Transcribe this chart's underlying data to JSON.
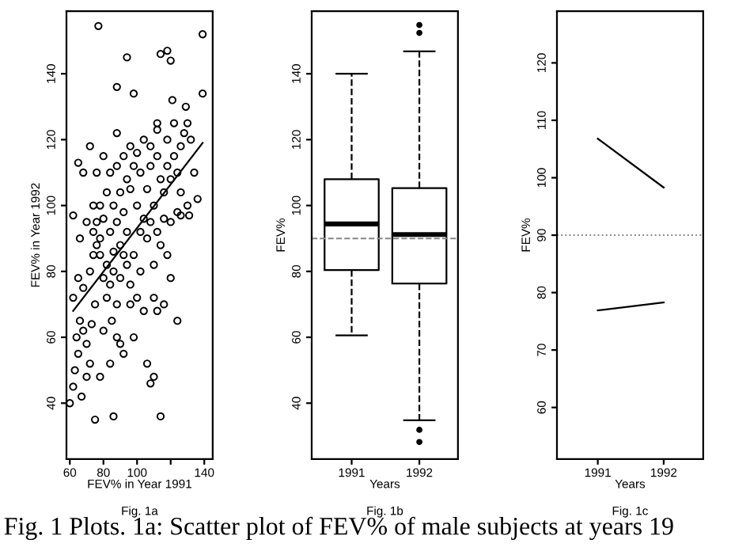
{
  "chart_data": [
    {
      "type": "scatter",
      "xlabel": "FEV% in Year 1991",
      "ylabel": "FEV% in Year 1992",
      "annotations": [
        "Fig. 1a",
        "Fig. 1 Plots. 1a: Scatter plot of FEV% of male subjects at years 19"
      ],
      "xlim": [
        58,
        145
      ],
      "ylim": [
        23,
        159
      ],
      "xticks": [
        60,
        80,
        100,
        {
          "value": 120,
          "label": null
        },
        140
      ],
      "yticks": [
        40,
        60,
        80,
        100,
        120,
        140
      ],
      "marker": "circle",
      "grid": false,
      "series": [
        {
          "color": "#000000",
          "x": [
            77,
            139,
            94,
            114,
            118,
            120,
            88,
            98,
            139,
            121,
            129,
            112,
            88,
            62,
            60,
            75,
            86,
            114,
            108,
            124,
            131,
            126,
            62,
            63,
            65,
            67,
            70,
            72,
            64,
            66,
            68,
            70,
            73,
            75,
            62,
            65,
            68,
            72,
            74,
            76,
            78,
            66,
            70,
            68,
            65,
            72,
            74,
            76,
            80,
            82,
            85,
            88,
            90,
            92,
            80,
            84,
            78,
            96,
            100,
            104,
            98,
            106,
            110,
            112,
            116,
            120,
            118,
            114,
            110,
            106,
            102,
            100,
            96,
            92,
            88,
            84,
            80,
            86,
            90,
            94,
            98,
            102,
            106,
            110,
            114,
            118,
            122,
            126,
            128,
            130,
            132,
            134,
            136,
            130,
            124,
            120,
            116,
            112,
            108,
            104,
            100,
            96,
            92,
            88,
            84,
            82,
            78,
            82,
            86,
            90,
            94,
            98,
            102,
            104,
            108,
            112,
            116,
            120,
            124,
            126,
            118,
            122,
            112,
            108,
            76,
            80,
            78,
            74,
            86,
            90,
            94,
            88,
            84,
            96,
            92,
            110
          ],
          "values": [
            154.5,
            152,
            145,
            146,
            147,
            144,
            136,
            134,
            134,
            132,
            130,
            123,
            122,
            97,
            40,
            35,
            36,
            36,
            46,
            65,
            97,
            97,
            45,
            50,
            55,
            42,
            48,
            52,
            60,
            65,
            62,
            58,
            64,
            70,
            72,
            78,
            75,
            80,
            85,
            88,
            90,
            90,
            95,
            110,
            113,
            118,
            100,
            95,
            78,
            72,
            65,
            60,
            58,
            55,
            62,
            52,
            48,
            70,
            72,
            68,
            60,
            52,
            48,
            68,
            70,
            78,
            85,
            88,
            82,
            90,
            92,
            100,
            105,
            98,
            95,
            92,
            96,
            100,
            104,
            108,
            112,
            110,
            105,
            100,
            108,
            112,
            115,
            118,
            122,
            125,
            120,
            110,
            102,
            100,
            98,
            95,
            96,
            115,
            118,
            120,
            116,
            118,
            115,
            112,
            110,
            104,
            85,
            82,
            80,
            78,
            82,
            85,
            80,
            96,
            95,
            92,
            104,
            108,
            110,
            104,
            120,
            125,
            125,
            112,
            110,
            115,
            100,
            92,
            86,
            88,
            92,
            70,
            76,
            76,
            85,
            72
          ]
        },
        {
          "type": "line",
          "color": "#000000",
          "marker": "none",
          "x": [
            62,
            139
          ],
          "values": [
            68,
            119
          ]
        }
      ]
    },
    {
      "type": "box",
      "categories": [
        "1991",
        "1992"
      ],
      "xlabel": "Years",
      "ylabel": "FEV%",
      "annotations": [
        "Fig. 1b"
      ],
      "ylim": [
        23,
        159
      ],
      "yticks": [
        40,
        60,
        80,
        100,
        120,
        140
      ],
      "grid": false,
      "boxes": [
        {
          "low": 60.6,
          "q1": 80.4,
          "median": 94.4,
          "q3": 108,
          "high": 140
        },
        {
          "low": 34.8,
          "q1": 76.3,
          "median": 91.2,
          "q3": 105.3,
          "high": 146.8,
          "outliers": [
            154.8,
            152.4,
            31.9,
            28.2
          ]
        }
      ],
      "ref_lines": [
        {
          "axis": "y",
          "value": 90,
          "label": null,
          "color": "#888888",
          "line_style": "dashed"
        }
      ]
    },
    {
      "type": "line",
      "categories": [
        "1991",
        "1992"
      ],
      "xlabel": "Years",
      "ylabel": "FEV%",
      "annotations": [
        "Fig. 1c"
      ],
      "ylim": [
        51,
        129
      ],
      "yticks": [
        60,
        70,
        80,
        90,
        100,
        110,
        120
      ],
      "grid": false,
      "marker": "none",
      "line_style": "solid",
      "series": [
        {
          "color": "#000000",
          "values": [
            106.8,
            98.3
          ]
        },
        {
          "color": "#000000",
          "values": [
            76.9,
            78.3
          ]
        }
      ],
      "ref_lines": [
        {
          "axis": "y",
          "value": 90,
          "label": null,
          "color": "#888888",
          "line_style": "dotted"
        }
      ]
    }
  ]
}
